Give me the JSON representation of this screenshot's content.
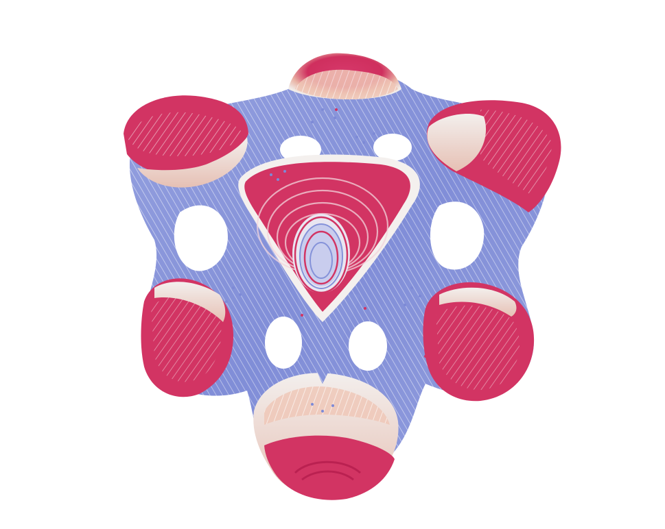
{
  "scene": {
    "background": "#ffffff",
    "object": "point-cloud-surface",
    "colormap": {
      "low": "#7d8ad6",
      "mid_low": "#a9b4e6",
      "mid": "#f2eeec",
      "mid_high": "#ecb8a6",
      "high": "#d23463",
      "high_dark": "#b81f50"
    }
  }
}
